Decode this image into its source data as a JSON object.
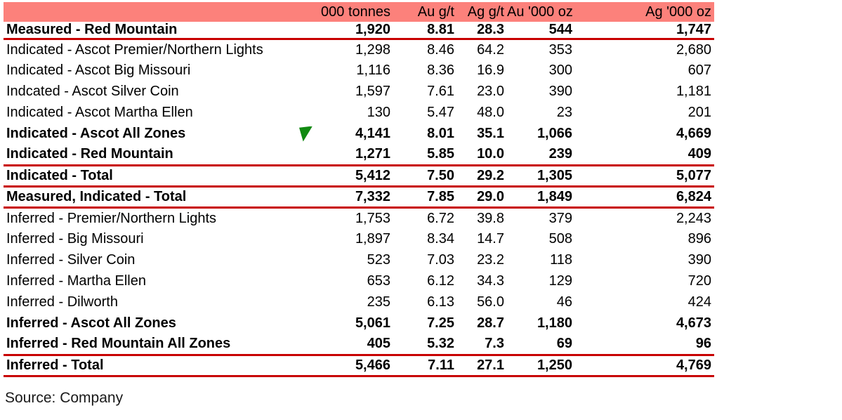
{
  "meta": {
    "source_note": "Source: Company"
  },
  "colors": {
    "header_bg": "#FC817B",
    "rule_red": "#C80000",
    "flag_green": "#118A11",
    "text": "#000000"
  },
  "table": {
    "columns": [
      {
        "label": ""
      },
      {
        "label": "000 tonnes"
      },
      {
        "label": "Au g/t"
      },
      {
        "label": "Ag g/t"
      },
      {
        "label": "Au '000 oz"
      },
      {
        "label": "Ag '000 oz"
      }
    ],
    "rows": [
      {
        "label": "Measured - Red Mountain",
        "values": [
          "1,920",
          "8.81",
          "28.3",
          "544",
          "1,747"
        ],
        "bold": true,
        "rule_below": true,
        "flag": false
      },
      {
        "label": "Indicated - Ascot Premier/Northern Lights",
        "values": [
          "1,298",
          "8.46",
          "64.2",
          "353",
          "2,680"
        ],
        "bold": false,
        "rule_below": false,
        "flag": false
      },
      {
        "label": "Indicated - Ascot Big Missouri",
        "values": [
          "1,116",
          "8.36",
          "16.9",
          "300",
          "607"
        ],
        "bold": false,
        "rule_below": false,
        "flag": false
      },
      {
        "label": "Indcated - Ascot Silver Coin",
        "values": [
          "1,597",
          "7.61",
          "23.0",
          "390",
          "1,181"
        ],
        "bold": false,
        "rule_below": false,
        "flag": false
      },
      {
        "label": "Indicated - Ascot Martha Ellen",
        "values": [
          "130",
          "5.47",
          "48.0",
          "23",
          "201"
        ],
        "bold": false,
        "rule_below": false,
        "flag": false
      },
      {
        "label": "Indicated - Ascot All Zones",
        "values": [
          "4,141",
          "8.01",
          "35.1",
          "1,066",
          "4,669"
        ],
        "bold": true,
        "rule_below": false,
        "flag": true
      },
      {
        "label": "Indicated - Red Mountain",
        "values": [
          "1,271",
          "5.85",
          "10.0",
          "239",
          "409"
        ],
        "bold": true,
        "rule_below": true,
        "flag": false
      },
      {
        "label": "Indicated - Total",
        "values": [
          "5,412",
          "7.50",
          "29.2",
          "1,305",
          "5,077"
        ],
        "bold": true,
        "rule_below": true,
        "flag": false
      },
      {
        "label": "Measured, Indicated - Total",
        "values": [
          "7,332",
          "7.85",
          "29.0",
          "1,849",
          "6,824"
        ],
        "bold": true,
        "rule_below": true,
        "flag": false
      },
      {
        "label": "Inferred - Premier/Northern Lights",
        "values": [
          "1,753",
          "6.72",
          "39.8",
          "379",
          "2,243"
        ],
        "bold": false,
        "rule_below": false,
        "flag": false
      },
      {
        "label": "Inferred - Big Missouri",
        "values": [
          "1,897",
          "8.34",
          "14.7",
          "508",
          "896"
        ],
        "bold": false,
        "rule_below": false,
        "flag": false
      },
      {
        "label": "Inferred - Silver Coin",
        "values": [
          "523",
          "7.03",
          "23.2",
          "118",
          "390"
        ],
        "bold": false,
        "rule_below": false,
        "flag": false
      },
      {
        "label": "Inferred - Martha Ellen",
        "values": [
          "653",
          "6.12",
          "34.3",
          "129",
          "720"
        ],
        "bold": false,
        "rule_below": false,
        "flag": false
      },
      {
        "label": "Inferred - Dilworth",
        "values": [
          "235",
          "6.13",
          "56.0",
          "46",
          "424"
        ],
        "bold": false,
        "rule_below": false,
        "flag": false
      },
      {
        "label": "Inferred - Ascot All Zones",
        "values": [
          "5,061",
          "7.25",
          "28.7",
          "1,180",
          "4,673"
        ],
        "bold": true,
        "rule_below": false,
        "flag": false
      },
      {
        "label": "Inferred - Red Mountain All Zones",
        "values": [
          "405",
          "5.32",
          "7.3",
          "69",
          "96"
        ],
        "bold": true,
        "rule_below": true,
        "flag": false
      },
      {
        "label": "Inferred - Total",
        "values": [
          "5,466",
          "7.11",
          "27.1",
          "1,250",
          "4,769"
        ],
        "bold": true,
        "rule_below": true,
        "flag": false
      }
    ]
  }
}
